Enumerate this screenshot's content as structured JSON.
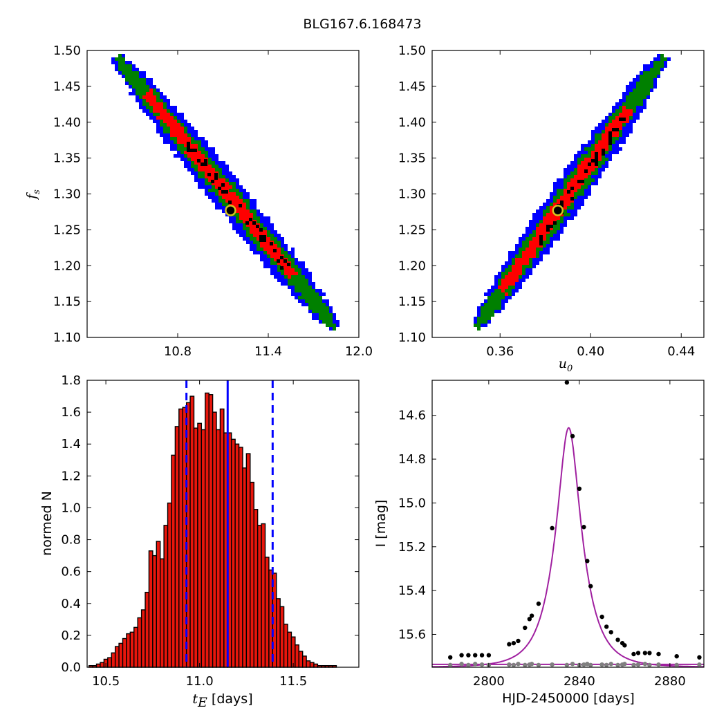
{
  "figure": {
    "title": "BLG167.6.168473"
  },
  "chart_data": [
    {
      "type": "heatmap",
      "panel": "top-left",
      "xlim": [
        10.2,
        12.0
      ],
      "ylim": [
        1.1,
        1.5
      ],
      "xticks": [
        "10.8",
        "11.4",
        "12.0"
      ],
      "yticks": [
        "1.10",
        "1.15",
        "1.20",
        "1.25",
        "1.30",
        "1.35",
        "1.40",
        "1.45",
        "1.50"
      ],
      "xlabel": "",
      "ylabel": "f_s",
      "ylabel_main": "f",
      "ylabel_sub": "s",
      "band": {
        "start": [
          10.42,
          1.485
        ],
        "end": [
          11.82,
          1.12
        ]
      },
      "levels": {
        "1sigma": "#ff0000",
        "2sigma": "#008000",
        "3sigma": "#0000ff",
        "chain": "#000000"
      },
      "best_fit": {
        "x": 11.15,
        "y": 1.277
      }
    },
    {
      "type": "heatmap",
      "panel": "top-right",
      "xlim": [
        0.33,
        0.45
      ],
      "ylim": [
        1.1,
        1.5
      ],
      "xticks": [
        "0.36",
        "0.40",
        "0.44"
      ],
      "yticks": [
        "1.10",
        "1.15",
        "1.20",
        "1.25",
        "1.30",
        "1.35",
        "1.40",
        "1.45",
        "1.50"
      ],
      "xlabel": "u_0",
      "xlabel_main": "u",
      "xlabel_sub": "0",
      "ylabel": "",
      "band": {
        "start": [
          0.351,
          1.12
        ],
        "end": [
          0.431,
          1.485
        ]
      },
      "levels": {
        "1sigma": "#ff0000",
        "2sigma": "#008000",
        "3sigma": "#0000ff",
        "chain": "#000000"
      },
      "best_fit": {
        "x": 0.3855,
        "y": 1.277
      }
    },
    {
      "type": "bar",
      "panel": "bottom-left",
      "xlim": [
        10.4,
        11.85
      ],
      "ylim": [
        0.0,
        1.8
      ],
      "xticks": [
        "10.5",
        "11.0",
        "11.5"
      ],
      "yticks": [
        "0.0",
        "0.2",
        "0.4",
        "0.6",
        "0.8",
        "1.0",
        "1.2",
        "1.4",
        "1.6",
        "1.8"
      ],
      "xlabel": "t_E [days]",
      "xlabel_main": "t",
      "xlabel_sub": "E",
      "xlabel_rest": " [days]",
      "ylabel": "normed N",
      "bin_start": 10.41,
      "bin_width": 0.02,
      "values": [
        0.01,
        0.01,
        0.02,
        0.03,
        0.05,
        0.06,
        0.09,
        0.13,
        0.15,
        0.18,
        0.21,
        0.22,
        0.25,
        0.31,
        0.36,
        0.47,
        0.73,
        0.7,
        0.79,
        0.68,
        0.89,
        1.03,
        1.33,
        1.51,
        1.62,
        1.63,
        1.66,
        1.7,
        1.5,
        1.53,
        1.49,
        1.72,
        1.71,
        1.6,
        1.49,
        1.62,
        1.47,
        1.47,
        1.43,
        1.4,
        1.38,
        1.25,
        1.34,
        1.16,
        0.99,
        0.89,
        0.9,
        0.69,
        0.61,
        0.59,
        0.43,
        0.38,
        0.27,
        0.22,
        0.19,
        0.14,
        0.1,
        0.07,
        0.04,
        0.03,
        0.02,
        0.01,
        0.01,
        0.01,
        0.01,
        0.01
      ],
      "bar_color": "#e8160c",
      "median": 11.15,
      "interval": [
        10.93,
        11.39
      ],
      "line_color": "#0000ff"
    },
    {
      "type": "scatter",
      "panel": "bottom-right",
      "xlim": [
        2775,
        2895
      ],
      "ylim": [
        15.75,
        14.44
      ],
      "y_inverted": true,
      "xticks": [
        "2800",
        "2840",
        "2880"
      ],
      "yticks": [
        "14.6",
        "14.8",
        "15.0",
        "15.2",
        "15.4",
        "15.6"
      ],
      "xlabel": "HJD-2450000 [days]",
      "ylabel": "I [mag]",
      "model": {
        "t0": 2835.3,
        "tE": 11.15,
        "u0": 0.3855,
        "I0": 15.705,
        "color": "#a020a0"
      },
      "residual_level": 15.737,
      "points": [
        [
          2783,
          15.705
        ],
        [
          2788,
          15.695
        ],
        [
          2791,
          15.695
        ],
        [
          2794,
          15.695
        ],
        [
          2797,
          15.695
        ],
        [
          2800,
          15.695
        ],
        [
          2809,
          15.645
        ],
        [
          2811,
          15.64
        ],
        [
          2813,
          15.63
        ],
        [
          2816,
          15.57
        ],
        [
          2818,
          15.53
        ],
        [
          2819,
          15.515
        ],
        [
          2822,
          15.46
        ],
        [
          2828,
          15.115
        ],
        [
          2834.5,
          14.45
        ],
        [
          2837,
          14.695
        ],
        [
          2840,
          14.935
        ],
        [
          2842,
          15.11
        ],
        [
          2843.5,
          15.265
        ],
        [
          2845,
          15.38
        ],
        [
          2850,
          15.52
        ],
        [
          2852,
          15.565
        ],
        [
          2854,
          15.59
        ],
        [
          2857,
          15.625
        ],
        [
          2859,
          15.64
        ],
        [
          2860,
          15.65
        ],
        [
          2864,
          15.69
        ],
        [
          2866,
          15.685
        ],
        [
          2869,
          15.685
        ],
        [
          2871,
          15.685
        ],
        [
          2875,
          15.69
        ],
        [
          2883,
          15.7
        ],
        [
          2893,
          15.705
        ]
      ],
      "residuals": [
        [
          2783,
          15.74
        ],
        [
          2788,
          15.735
        ],
        [
          2791,
          15.74
        ],
        [
          2794,
          15.735
        ],
        [
          2797,
          15.738
        ],
        [
          2800,
          15.74
        ],
        [
          2809,
          15.738
        ],
        [
          2811,
          15.74
        ],
        [
          2813,
          15.735
        ],
        [
          2816,
          15.74
        ],
        [
          2818,
          15.738
        ],
        [
          2819,
          15.735
        ],
        [
          2822,
          15.74
        ],
        [
          2828,
          15.738
        ],
        [
          2834.5,
          15.74
        ],
        [
          2837,
          15.735
        ],
        [
          2840,
          15.74
        ],
        [
          2842,
          15.738
        ],
        [
          2843.5,
          15.735
        ],
        [
          2845,
          15.74
        ],
        [
          2850,
          15.738
        ],
        [
          2852,
          15.74
        ],
        [
          2854,
          15.735
        ],
        [
          2857,
          15.74
        ],
        [
          2859,
          15.738
        ],
        [
          2860,
          15.735
        ],
        [
          2864,
          15.74
        ],
        [
          2866,
          15.738
        ],
        [
          2869,
          15.735
        ],
        [
          2871,
          15.74
        ],
        [
          2875,
          15.738
        ],
        [
          2883,
          15.74
        ],
        [
          2893,
          15.738
        ]
      ],
      "point_color": "#000000",
      "residual_color": "#808080"
    }
  ]
}
